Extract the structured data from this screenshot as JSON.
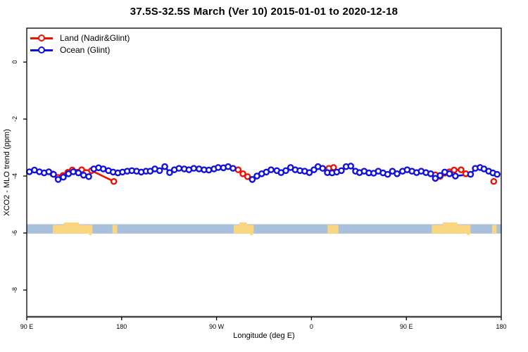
{
  "title": "37.5S-32.5S March (Ver 10)   2015-01-01 to 2020-12-18",
  "legend": {
    "items": [
      {
        "label": "Land (Nadir&Glint)",
        "color": "#ee1100"
      },
      {
        "label": "Ocean (Glint)",
        "color": "#1111dd"
      }
    ]
  },
  "colors": {
    "land_series": "#ee1100",
    "ocean_series": "#1111dd",
    "map_ocean": "#a9c0dd",
    "map_land": "#fbd681",
    "axis_box": "#000000",
    "bottom_axis": "#444444"
  },
  "chart_data": {
    "type": "line",
    "title": "37.5S-32.5S March (Ver 10)   2015-01-01 to 2020-12-18",
    "xlabel": "Longitude (deg E)",
    "ylabel": "XCO2 - MLO trend (ppm)",
    "x_axis": {
      "range": [
        90,
        540
      ],
      "ticks": [
        {
          "pos": 90,
          "label": "90 E"
        },
        {
          "pos": 180,
          "label": "180"
        },
        {
          "pos": 270,
          "label": "90 W"
        },
        {
          "pos": 360,
          "label": "0"
        },
        {
          "pos": 450,
          "label": "90 E"
        },
        {
          "pos": 540,
          "label": "180"
        }
      ],
      "note": "longitude wraps: 90E to 180 to 90W to 0 to 90E to 180"
    },
    "y_axis": {
      "range": [
        -8.94,
        1.19
      ],
      "ticks": [
        {
          "pos": 0,
          "label": "0"
        },
        {
          "pos": -2,
          "label": "-2"
        },
        {
          "pos": -4,
          "label": "-4"
        },
        {
          "pos": -6,
          "label": "-6"
        },
        {
          "pos": -8,
          "label": "-8"
        }
      ],
      "grid": false
    },
    "legend_position": "top-left-inside",
    "series": [
      {
        "name": "Ocean (Glint)",
        "color": "#1111dd",
        "marker": "open-circle",
        "segments": [
          [
            [
              92.5,
              -3.85
            ],
            [
              97.3,
              -3.79
            ],
            [
              102,
              -3.85
            ],
            [
              106.5,
              -3.89
            ],
            [
              110.9,
              -3.85
            ],
            [
              115.4,
              -3.94
            ],
            [
              119.8,
              -4.12
            ],
            [
              124.7,
              -4.04
            ],
            [
              129.6,
              -3.92
            ],
            [
              134.1,
              -3.85
            ],
            [
              139,
              -3.89
            ],
            [
              143.9,
              -3.97
            ],
            [
              148.8,
              -4.02
            ],
            [
              153.6,
              -3.75
            ],
            [
              158.1,
              -3.71
            ],
            [
              162.6,
              -3.75
            ],
            [
              167.5,
              -3.81
            ],
            [
              171.9,
              -3.86
            ],
            [
              176.4,
              -3.89
            ],
            [
              180.8,
              -3.86
            ],
            [
              185.3,
              -3.83
            ],
            [
              189.7,
              -3.81
            ],
            [
              194.2,
              -3.83
            ],
            [
              198.6,
              -3.86
            ],
            [
              203.1,
              -3.83
            ],
            [
              207.1,
              -3.83
            ],
            [
              211.5,
              -3.75
            ],
            [
              216,
              -3.81
            ],
            [
              220.9,
              -3.67
            ],
            [
              225.5,
              -3.88
            ],
            [
              230,
              -3.78
            ],
            [
              234.4,
              -3.73
            ],
            [
              239.4,
              -3.75
            ],
            [
              243.8,
              -3.78
            ],
            [
              248.4,
              -3.73
            ],
            [
              253.4,
              -3.75
            ],
            [
              258.2,
              -3.78
            ],
            [
              262.7,
              -3.79
            ],
            [
              267.6,
              -3.75
            ],
            [
              271.6,
              -3.7
            ],
            [
              276.5,
              -3.71
            ],
            [
              281,
              -3.67
            ],
            [
              285.6,
              -3.73
            ]
          ],
          [
            [
              303.9,
              -4.12
            ],
            [
              308.3,
              -4.0
            ],
            [
              312.8,
              -3.92
            ],
            [
              317.2,
              -3.86
            ],
            [
              321.7,
              -3.78
            ],
            [
              327.2,
              -3.81
            ],
            [
              331.2,
              -3.88
            ],
            [
              335.7,
              -3.81
            ],
            [
              340.2,
              -3.7
            ],
            [
              344.6,
              -3.78
            ],
            [
              349.1,
              -3.81
            ],
            [
              353.6,
              -3.83
            ],
            [
              358,
              -3.88
            ],
            [
              362.4,
              -3.78
            ],
            [
              366.2,
              -3.67
            ],
            [
              370.6,
              -3.73
            ],
            [
              375.1,
              -3.88
            ],
            [
              379.6,
              -3.89
            ],
            [
              384,
              -3.86
            ],
            [
              388.4,
              -3.81
            ],
            [
              392.9,
              -3.67
            ],
            [
              397.3,
              -3.65
            ],
            [
              401.8,
              -3.83
            ],
            [
              405.6,
              -3.88
            ],
            [
              410,
              -3.83
            ],
            [
              414.5,
              -3.89
            ],
            [
              419,
              -3.9
            ],
            [
              423.4,
              -3.83
            ],
            [
              427.9,
              -3.89
            ],
            [
              432.3,
              -3.94
            ],
            [
              436.8,
              -3.83
            ],
            [
              441.2,
              -3.92
            ],
            [
              446.4,
              -3.83
            ],
            [
              450.8,
              -3.78
            ],
            [
              455.3,
              -3.83
            ],
            [
              459.7,
              -3.88
            ],
            [
              464.1,
              -3.83
            ],
            [
              468.6,
              -3.88
            ],
            [
              473.1,
              -3.92
            ],
            [
              477.5,
              -4.08
            ],
            [
              482,
              -3.98
            ],
            [
              486.4,
              -3.86
            ],
            [
              490.9,
              -3.92
            ],
            [
              496.5,
              -4.0
            ],
            [
              510.9,
              -3.94
            ],
            [
              515.4,
              -3.73
            ],
            [
              519.9,
              -3.7
            ],
            [
              523.6,
              -3.75
            ],
            [
              528.1,
              -3.83
            ],
            [
              532.1,
              -3.89
            ],
            [
              536.1,
              -3.94
            ]
          ]
        ]
      },
      {
        "name": "Land (Nadir&Glint)",
        "color": "#ee1100",
        "marker": "open-circle",
        "segments": [
          [
            [
              114.8,
              -3.93
            ],
            [
              119.6,
              -4.05
            ],
            [
              124.3,
              -3.98
            ],
            [
              129,
              -3.87
            ],
            [
              133.2,
              -3.79
            ],
            [
              142.1,
              -3.78
            ],
            [
              151.4,
              -3.81
            ],
            [
              172.6,
              -4.19
            ]
          ],
          [
            [
              290.5,
              -3.78
            ],
            [
              295,
              -3.92
            ],
            [
              299.4,
              -4.02
            ],
            [
              303.9,
              -4.12
            ]
          ],
          [
            [
              376.5,
              -3.73
            ],
            [
              381,
              -3.7
            ]
          ],
          [
            [
              477.5,
              -3.96
            ],
            [
              482,
              -4.01
            ],
            [
              486.4,
              -3.9
            ],
            [
              490.9,
              -3.85
            ],
            [
              495.3,
              -3.79
            ],
            [
              501.9,
              -3.78
            ],
            [
              506.4,
              -3.92
            ]
          ],
          [
            [
              532.9,
              -4.19
            ]
          ]
        ]
      }
    ],
    "map_strip": {
      "description": "land/ocean strip for latitude band 37.5S-32.5S",
      "value_top": -5.69,
      "value_bottom": -6.02,
      "ocean_color": "#a9c0dd",
      "land_color": "#fbd681",
      "land_patches": [
        {
          "from": 114.7,
          "to": 152.3,
          "rugged": true,
          "region": "Australia"
        },
        {
          "from": 171.3,
          "to": 175.8,
          "rugged": false,
          "region": "New Zealand"
        },
        {
          "from": 286.3,
          "to": 305.2,
          "rugged": true,
          "region": "South America"
        },
        {
          "from": 375.3,
          "to": 385.6,
          "rugged": false,
          "region": "South Africa"
        },
        {
          "from": 474.2,
          "to": 510.8,
          "rugged": true,
          "region": "Australia"
        },
        {
          "from": 531.3,
          "to": 535.5,
          "rugged": false,
          "region": "New Zealand"
        }
      ]
    }
  }
}
